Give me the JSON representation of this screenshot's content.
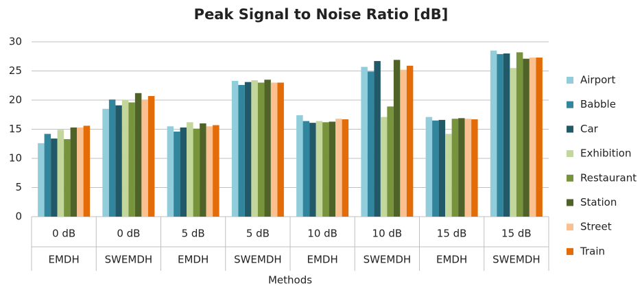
{
  "chart_data": {
    "type": "bar",
    "title": "Peak Signal to Noise Ratio [dB]",
    "x_label": "Methods",
    "categories": [
      "0 dB",
      "0 dB",
      "5 dB",
      "5 dB",
      "10 dB",
      "10 dB",
      "15 dB",
      "15 dB"
    ],
    "methods": [
      "EMDH",
      "SWEMDH",
      "EMDH",
      "SWEMDH",
      "EMDH",
      "SWEMDH",
      "EMDH",
      "SWEMDH"
    ],
    "series": [
      {
        "name": "Airport",
        "color": "#92cddc",
        "values": [
          12.6,
          18.5,
          15.5,
          23.3,
          17.4,
          25.7,
          17.1,
          28.5
        ]
      },
      {
        "name": "Babble",
        "color": "#31859c",
        "values": [
          14.2,
          20.1,
          14.6,
          22.6,
          16.4,
          24.9,
          16.5,
          27.9
        ]
      },
      {
        "name": "Car",
        "color": "#215968",
        "values": [
          13.4,
          19.1,
          15.3,
          23.1,
          16.1,
          26.7,
          16.6,
          28.0
        ]
      },
      {
        "name": "Exhibition",
        "color": "#c3d69b",
        "values": [
          14.9,
          20.0,
          16.2,
          23.4,
          16.4,
          17.1,
          14.2,
          25.5
        ]
      },
      {
        "name": "Restaurant",
        "color": "#77933c",
        "values": [
          13.3,
          19.6,
          15.1,
          23.0,
          16.2,
          18.9,
          16.8,
          28.2
        ]
      },
      {
        "name": "Station",
        "color": "#4f6228",
        "values": [
          15.3,
          21.2,
          16.0,
          23.5,
          16.3,
          26.9,
          16.9,
          27.1
        ]
      },
      {
        "name": "Street",
        "color": "#fac090",
        "values": [
          15.3,
          20.1,
          15.5,
          23.0,
          16.8,
          25.2,
          16.8,
          27.3
        ]
      },
      {
        "name": "Train",
        "color": "#e36c09",
        "values": [
          15.6,
          20.7,
          15.7,
          23.0,
          16.7,
          25.9,
          16.7,
          27.3
        ]
      }
    ],
    "ylim": [
      0,
      30
    ],
    "yticks": [
      0,
      5,
      10,
      15,
      20,
      25,
      30
    ],
    "grid": true,
    "legend": "right"
  }
}
